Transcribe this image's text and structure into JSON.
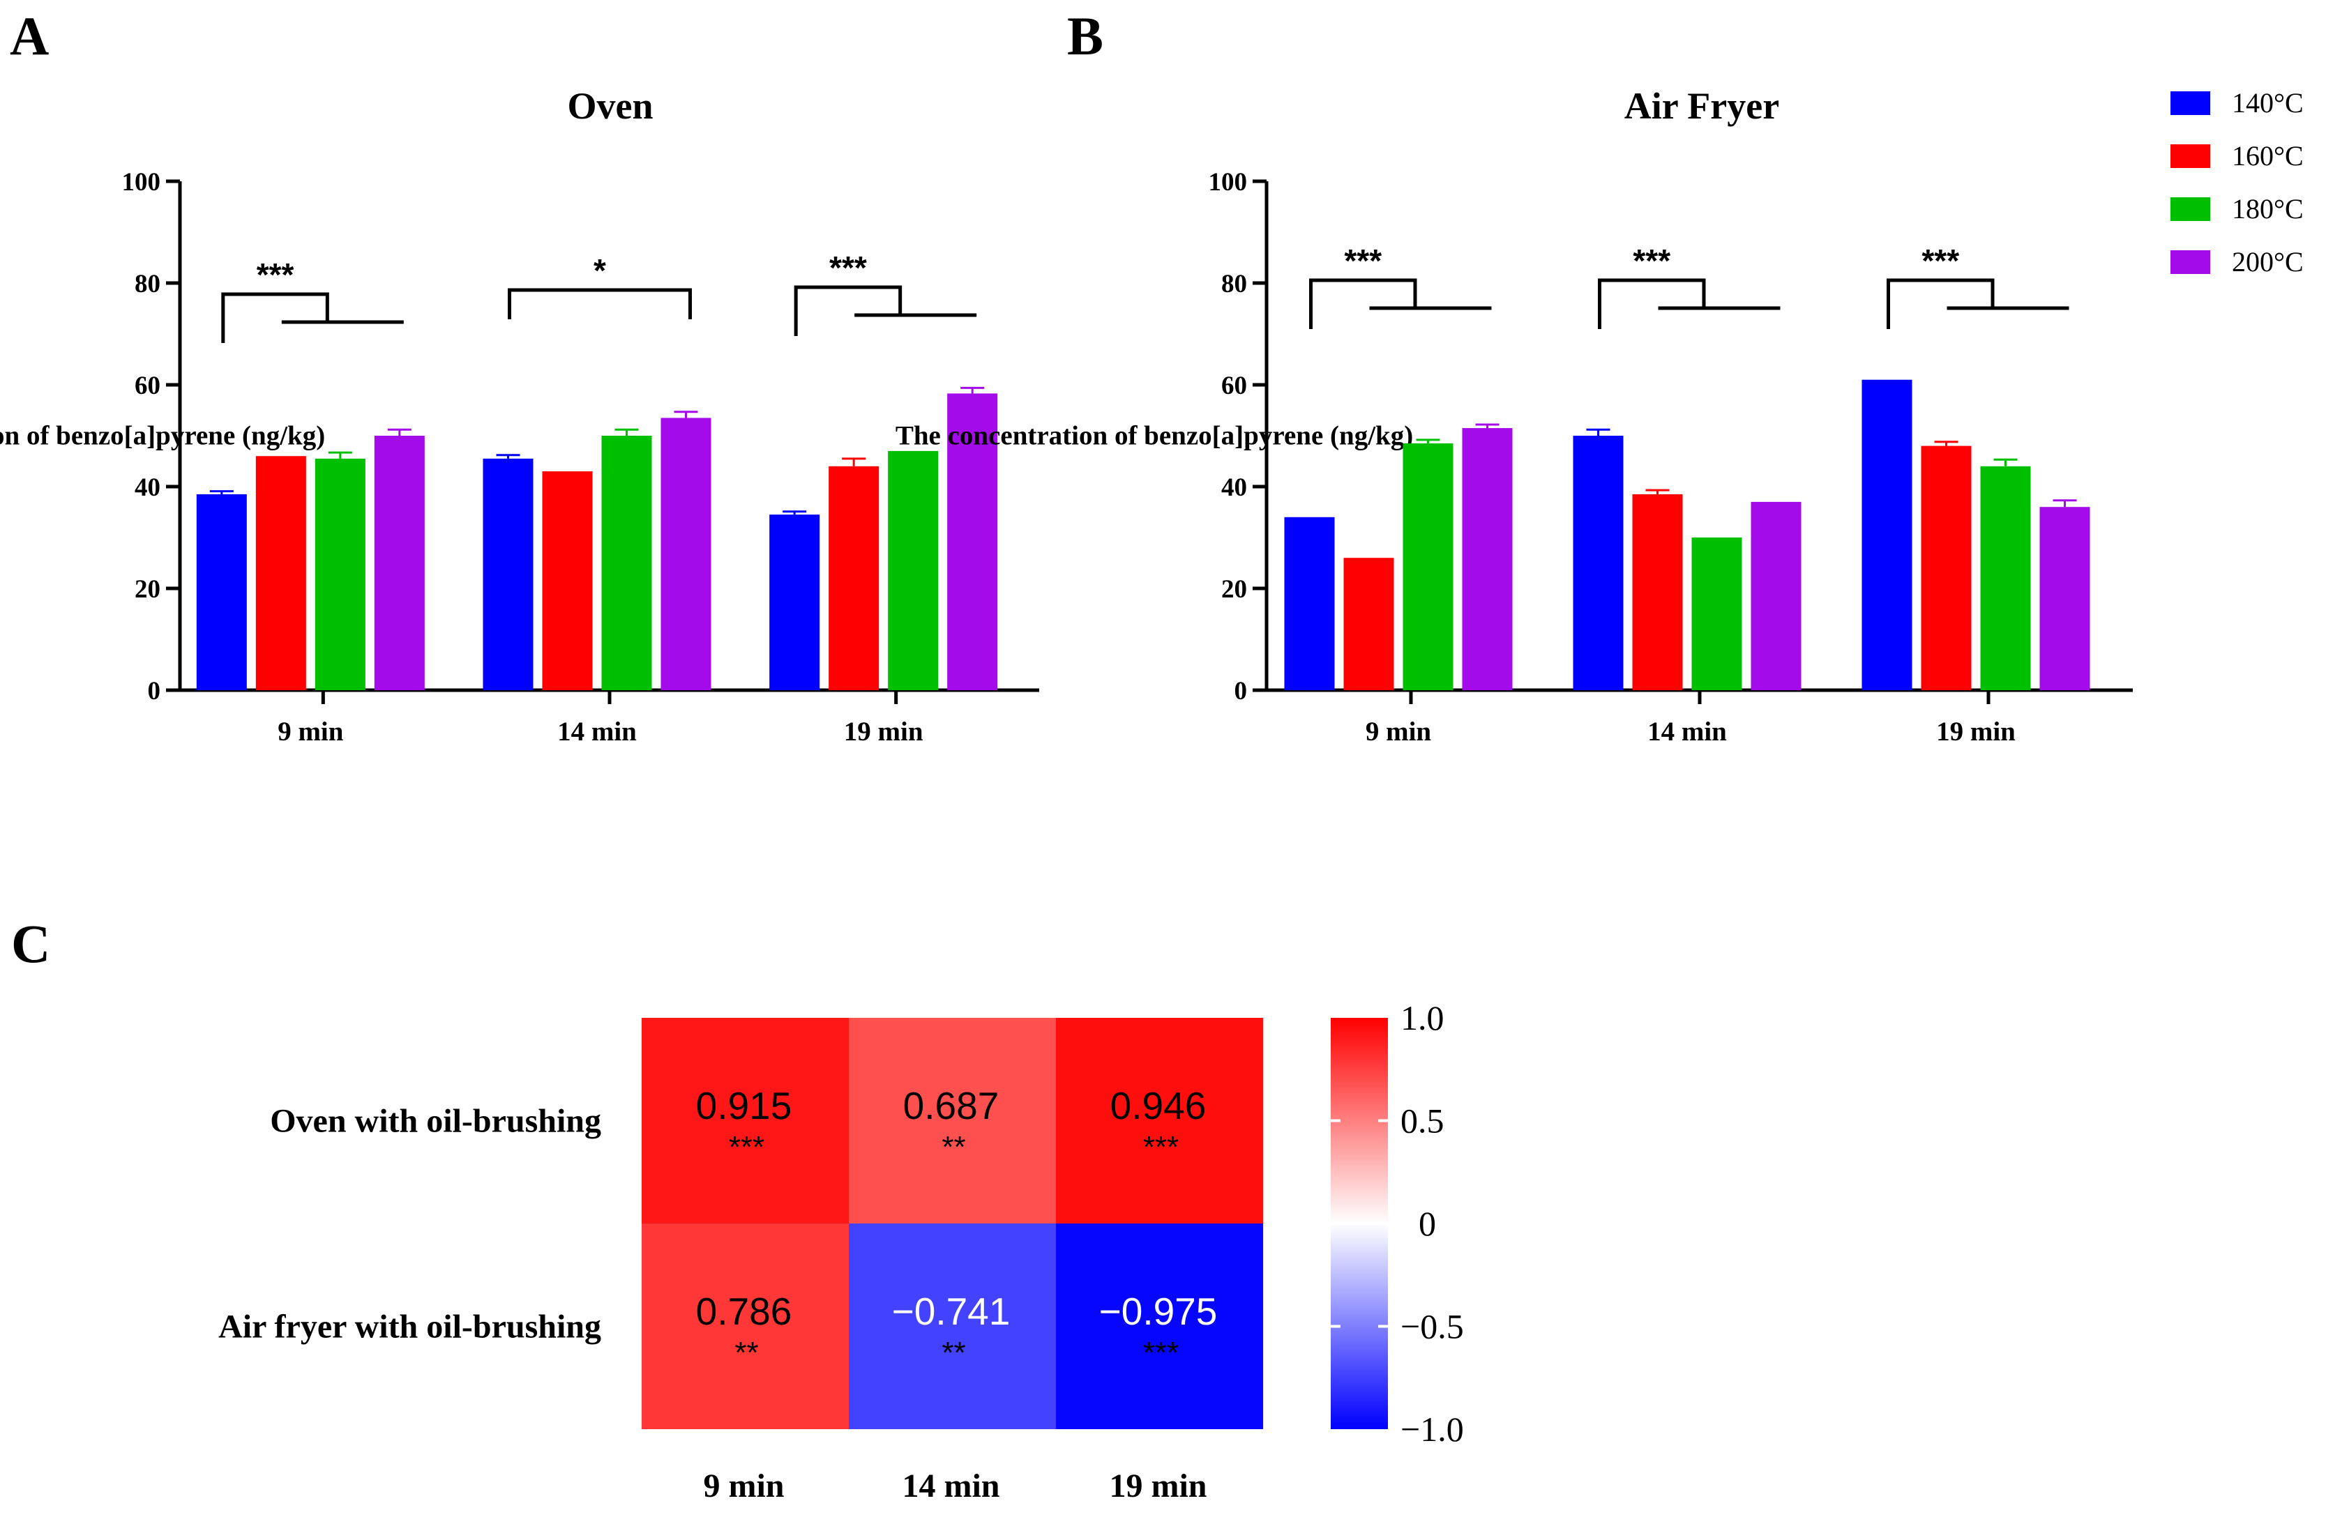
{
  "panels": {
    "a": "A",
    "b": "B",
    "c": "C"
  },
  "legend": [
    {
      "label": "140°C",
      "color": "#0000ff"
    },
    {
      "label": "160°C",
      "color": "#ff0000"
    },
    {
      "label": "180°C",
      "color": "#00bf00"
    },
    {
      "label": "200°C",
      "color": "#a30bea"
    }
  ],
  "chart_data": [
    {
      "type": "bar",
      "title": "Oven",
      "ylabel": "The concentration of benzo[a]pyrene (ng/kg)",
      "xlabel": "",
      "ylim": [
        0,
        100
      ],
      "yticks": [
        0,
        20,
        40,
        60,
        80,
        100
      ],
      "categories": [
        "9 min",
        "14 min",
        "19 min"
      ],
      "series": [
        {
          "name": "140°C",
          "values": [
            38.5,
            45.5,
            34.5
          ],
          "errors": [
            0.6,
            0.7,
            0.6
          ]
        },
        {
          "name": "160°C",
          "values": [
            46,
            43,
            44
          ],
          "errors": [
            0,
            0,
            1.5
          ]
        },
        {
          "name": "180°C",
          "values": [
            45.5,
            50,
            47
          ],
          "errors": [
            1.2,
            1.2,
            0
          ]
        },
        {
          "name": "200°C",
          "values": [
            50,
            53.5,
            58.3
          ],
          "errors": [
            1.2,
            1.2,
            1.1
          ]
        }
      ],
      "significance": [
        "***",
        "*",
        "***"
      ]
    },
    {
      "type": "bar",
      "title": "Air Fryer",
      "ylabel": "The concentration of benzo[a]pyrene (ng/kg)",
      "xlabel": "",
      "ylim": [
        0,
        100
      ],
      "yticks": [
        0,
        20,
        40,
        60,
        80,
        100
      ],
      "categories": [
        "9 min",
        "14 min",
        "19 min"
      ],
      "series": [
        {
          "name": "140°C",
          "values": [
            34,
            50,
            61
          ],
          "errors": [
            0,
            1.2,
            0
          ]
        },
        {
          "name": "160°C",
          "values": [
            26,
            38.5,
            48
          ],
          "errors": [
            0,
            0.8,
            0.8
          ]
        },
        {
          "name": "180°C",
          "values": [
            48.5,
            30,
            44
          ],
          "errors": [
            0.7,
            0,
            1.3
          ]
        },
        {
          "name": "200°C",
          "values": [
            51.5,
            37,
            36
          ],
          "errors": [
            0.7,
            0,
            1.3
          ]
        }
      ],
      "significance": [
        "***",
        "***",
        "***"
      ]
    },
    {
      "type": "heatmap",
      "rows": [
        "Oven with oil-brushing",
        "Air fryer with oil-brushing"
      ],
      "columns": [
        "9 min",
        "14 min",
        "19 min"
      ],
      "values": [
        [
          0.915,
          0.687,
          0.946
        ],
        [
          0.786,
          -0.741,
          -0.975
        ]
      ],
      "value_labels": [
        [
          "0.915",
          "0.687",
          "0.946"
        ],
        [
          "0.786",
          "−0.741",
          "−0.975"
        ]
      ],
      "significance": [
        [
          "***",
          "**",
          "***"
        ],
        [
          "**",
          "**",
          "***"
        ]
      ],
      "colorbar": {
        "range": [
          -1,
          1
        ],
        "ticks": [
          "1.0",
          "0.5",
          "0",
          "−0.5",
          "−1.0"
        ],
        "colors": [
          "#0000ff",
          "#ffffff",
          "#ff0000"
        ]
      }
    }
  ]
}
